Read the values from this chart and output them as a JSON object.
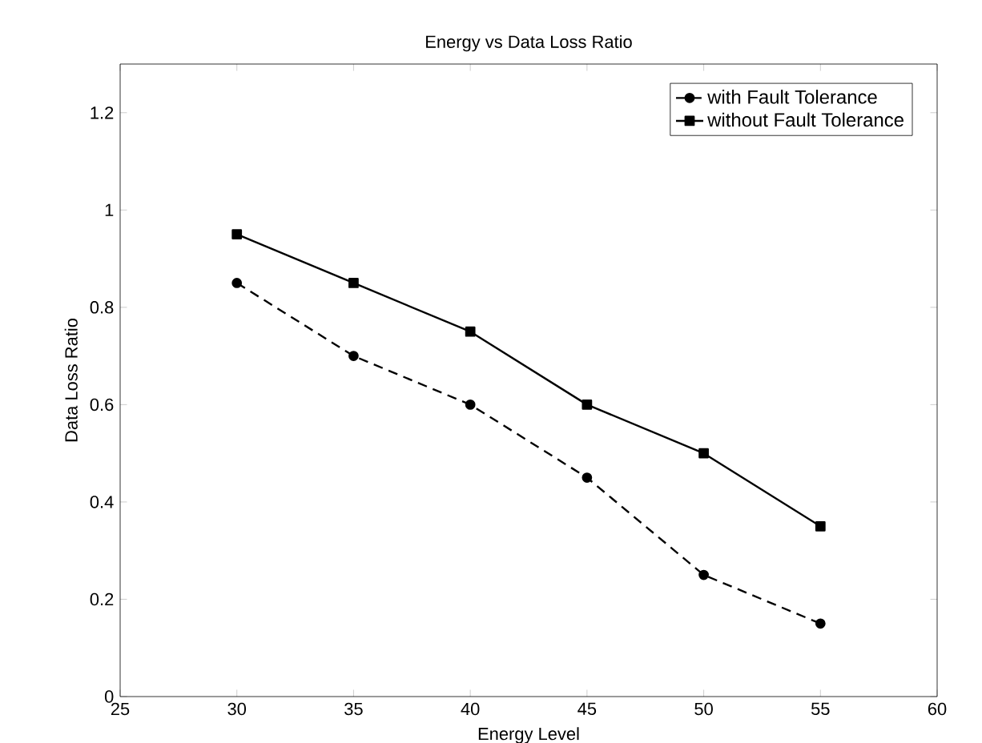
{
  "chart_data": {
    "type": "line",
    "title": "Energy vs Data Loss Ratio",
    "xlabel": "Energy Level",
    "ylabel": "Data Loss Ratio",
    "x": [
      30,
      35,
      40,
      45,
      50,
      55
    ],
    "series": [
      {
        "name": "with Fault Tolerance",
        "color": "#000000",
        "marker": "circle",
        "line_style": "dashed",
        "values": [
          0.85,
          0.7,
          0.6,
          0.45,
          0.25,
          0.15
        ]
      },
      {
        "name": "without Fault Tolerance",
        "color": "#000000",
        "marker": "square",
        "line_style": "solid",
        "values": [
          0.95,
          0.85,
          0.75,
          0.6,
          0.5,
          0.35
        ]
      }
    ],
    "xlim": [
      25,
      60
    ],
    "xticks": [
      25,
      30,
      35,
      40,
      45,
      50,
      55,
      60
    ],
    "ylim": [
      0,
      1.3
    ],
    "yticks": [
      0,
      0.2,
      0.4,
      0.6,
      0.8,
      1,
      1.2
    ],
    "grid": false,
    "legend": "top right"
  }
}
